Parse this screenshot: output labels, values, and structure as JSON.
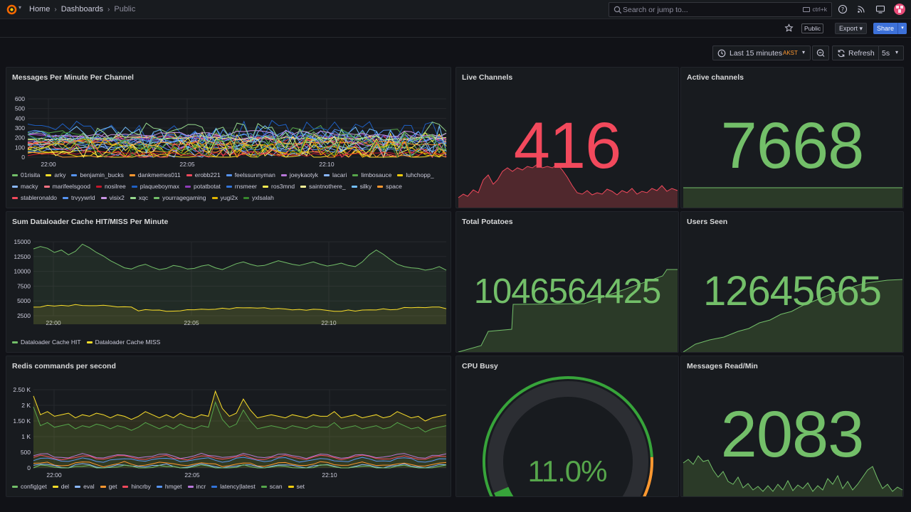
{
  "topbar": {
    "breadcrumbs": [
      "Home",
      "Dashboards",
      "Public"
    ],
    "search_placeholder": "Search or jump to...",
    "search_shortcut": "ctrl+k"
  },
  "toolbar": {
    "public_label": "Public",
    "export_label": "Export",
    "share_label": "Share"
  },
  "timepicker": {
    "range_label": "Last 15 minutes",
    "timezone": "AKST",
    "refresh_label": "Refresh",
    "refresh_interval": "5s"
  },
  "colors": {
    "green": "#73bf69",
    "red": "#f2495c",
    "yellow": "#fade2a",
    "orange": "#ff9830",
    "blue": "#5794f2"
  },
  "panels": {
    "messages": {
      "title": "Messages Per Minute Per Channel",
      "legend": [
        {
          "name": "01risita",
          "color": "#73bf69"
        },
        {
          "name": "arky",
          "color": "#fade2a"
        },
        {
          "name": "benjamin_bucks",
          "color": "#5794f2"
        },
        {
          "name": "dankmemes011",
          "color": "#ff9830"
        },
        {
          "name": "erobb221",
          "color": "#f2495c"
        },
        {
          "name": "feelssunnyman",
          "color": "#5794f2"
        },
        {
          "name": "joeykaotyk",
          "color": "#b877d9"
        },
        {
          "name": "lacari",
          "color": "#8ab8ff"
        },
        {
          "name": "limbosauce",
          "color": "#56a64b"
        },
        {
          "name": "luhchopp_",
          "color": "#f2cc0c"
        },
        {
          "name": "macky",
          "color": "#8ab8ff"
        },
        {
          "name": "marifeelsgood",
          "color": "#ff7383"
        },
        {
          "name": "nosilree",
          "color": "#c4162a"
        },
        {
          "name": "plaqueboymax",
          "color": "#1f60c4"
        },
        {
          "name": "potatbotat",
          "color": "#8f3bb8"
        },
        {
          "name": "rnsmeer",
          "color": "#3274d9"
        },
        {
          "name": "ros3mnd",
          "color": "#ffee52"
        },
        {
          "name": "saintnothere_",
          "color": "#fff899"
        },
        {
          "name": "silky",
          "color": "#73bfff"
        },
        {
          "name": "space",
          "color": "#ff9830"
        },
        {
          "name": "stableronaldo",
          "color": "#f2495c"
        },
        {
          "name": "trvyywrld",
          "color": "#5794f2"
        },
        {
          "name": "visix2",
          "color": "#ca95e5"
        },
        {
          "name": "xqc",
          "color": "#96d98d"
        },
        {
          "name": "yourragegaming",
          "color": "#73bf69"
        },
        {
          "name": "yugi2x",
          "color": "#e0b400"
        },
        {
          "name": "yxlsalah",
          "color": "#37872d"
        }
      ],
      "y_ticks": [
        "600",
        "500",
        "400",
        "300",
        "200",
        "100",
        "0"
      ],
      "x_ticks": [
        "22:00",
        "22:05",
        "22:10"
      ]
    },
    "dataloader": {
      "title": "Sum Dataloader Cache HIT/MISS Per Minute",
      "y_ticks": [
        "15000",
        "12500",
        "10000",
        "7500",
        "5000",
        "2500"
      ],
      "x_ticks": [
        "22:00",
        "22:05",
        "22:10"
      ],
      "legend": [
        {
          "name": "Dataloader Cache HIT",
          "color": "#73bf69"
        },
        {
          "name": "Dataloader Cache MISS",
          "color": "#fade2a"
        }
      ]
    },
    "redis": {
      "title": "Redis commands per second",
      "y_ticks": [
        "2.50 K",
        "2 K",
        "1.50 K",
        "1 K",
        "500",
        "0"
      ],
      "x_ticks": [
        "22:00",
        "22:05",
        "22:10"
      ],
      "legend": [
        {
          "name": "config|get",
          "color": "#73bf69"
        },
        {
          "name": "del",
          "color": "#fade2a"
        },
        {
          "name": "eval",
          "color": "#8ab8ff"
        },
        {
          "name": "get",
          "color": "#ff9830"
        },
        {
          "name": "hincrby",
          "color": "#f2495c"
        },
        {
          "name": "hmget",
          "color": "#5794f2"
        },
        {
          "name": "incr",
          "color": "#b877d9"
        },
        {
          "name": "latency|latest",
          "color": "#3274d9"
        },
        {
          "name": "scan",
          "color": "#56a64b"
        },
        {
          "name": "set",
          "color": "#f2cc0c"
        }
      ]
    },
    "live_channels": {
      "title": "Live Channels",
      "value": "416"
    },
    "active_channels": {
      "title": "Active channels",
      "value": "7668"
    },
    "total_potatoes": {
      "title": "Total Potatoes",
      "value": "1046564425"
    },
    "users_seen": {
      "title": "Users Seen",
      "value": "12645665"
    },
    "cpu_busy": {
      "title": "CPU Busy",
      "value": "11.0%",
      "percent": 11.0
    },
    "messages_read": {
      "title": "Messages Read/Min",
      "value": "2083"
    }
  }
}
